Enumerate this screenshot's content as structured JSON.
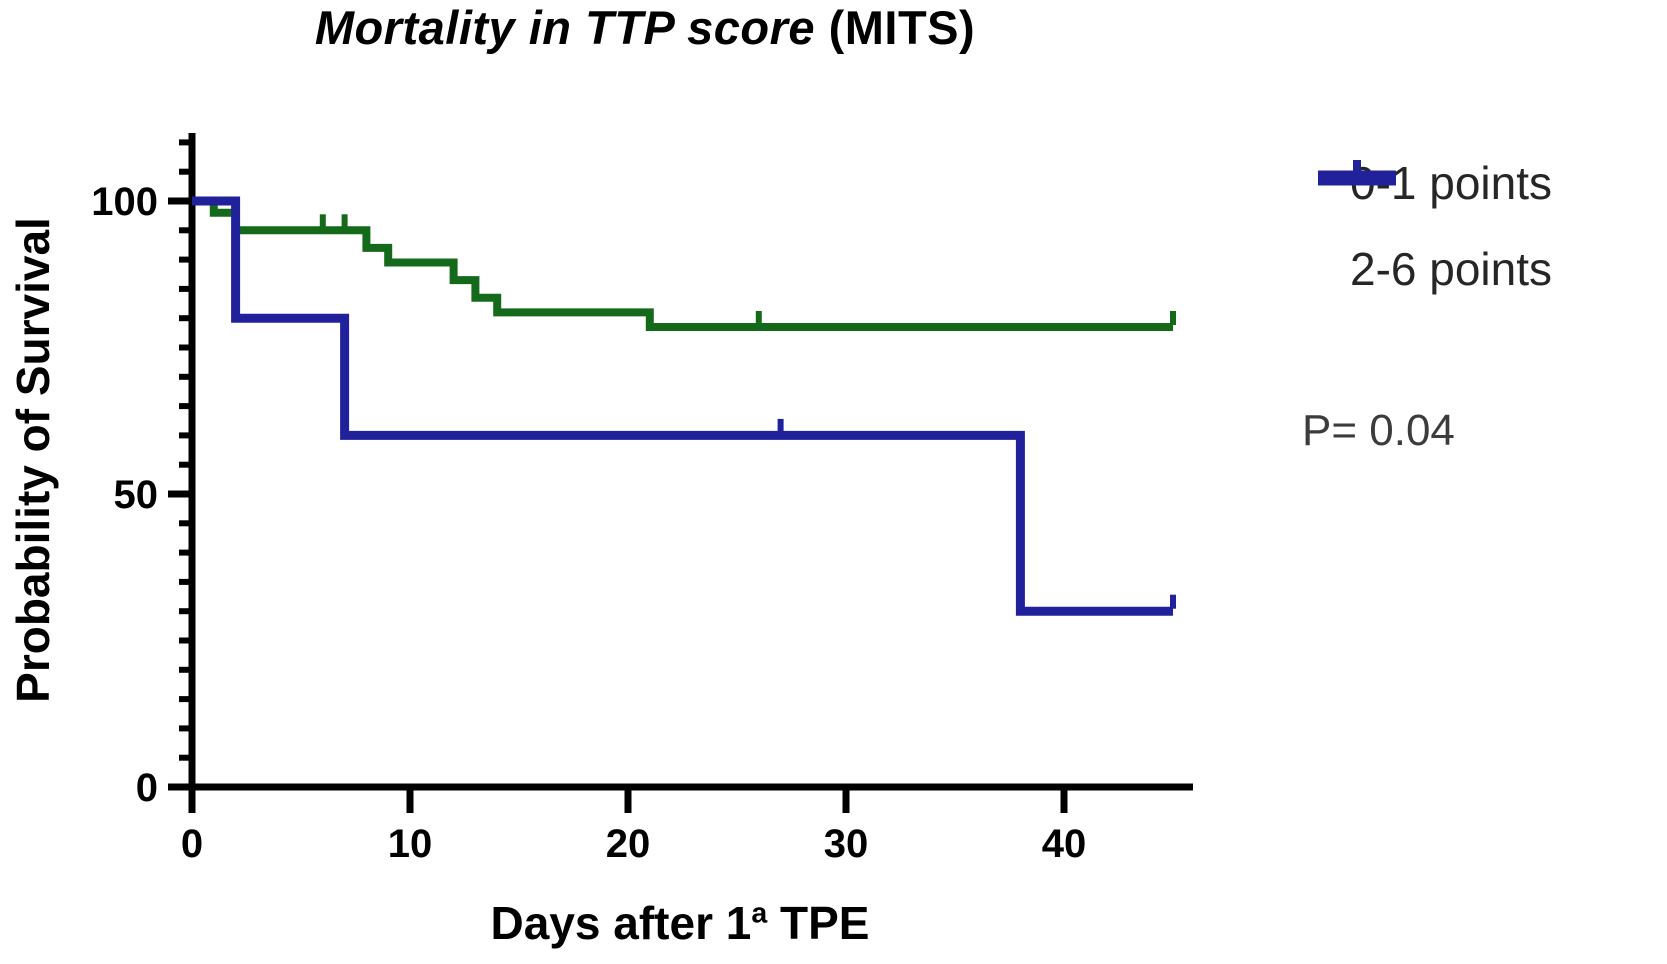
{
  "title": {
    "italic": "Mortality in TTP score",
    "normal": " (MITS)"
  },
  "axes": {
    "y": {
      "label": "Probability of Survival"
    },
    "x": {
      "label_prefix": "Days after 1",
      "label_sup": "a",
      "label_suffix": " TPE"
    }
  },
  "legend": [
    {
      "label": "0-1 points",
      "color": "#15691a"
    },
    {
      "label": "2-6 points",
      "color": "#21219c"
    }
  ],
  "annotation": {
    "p_value": "P= 0.04"
  },
  "chart_data": {
    "type": "line",
    "subtype": "kaplan-meier-step-survival",
    "title": "Mortality in TTP score (MITS)",
    "xlabel": "Days after 1ª TPE",
    "ylabel": "Probability of Survival",
    "xlim": [
      0,
      46
    ],
    "ylim": [
      0,
      111
    ],
    "xticks": [
      0,
      10,
      20,
      30,
      40
    ],
    "yticks": [
      0,
      50,
      100
    ],
    "yminor": {
      "step": 5,
      "max": 110
    },
    "grid": false,
    "legend_position": "right",
    "series": [
      {
        "name": "0-1 points",
        "color": "#15691a",
        "stroke_width": 8,
        "steps": [
          [
            0,
            100
          ],
          [
            1,
            98
          ],
          [
            2,
            95
          ],
          [
            8,
            92
          ],
          [
            9,
            89.5
          ],
          [
            12,
            86.5
          ],
          [
            13,
            83.5
          ],
          [
            14,
            81
          ],
          [
            21,
            78.5
          ]
        ],
        "end_x": 45,
        "censor_marks": [
          [
            6,
            95
          ],
          [
            7,
            95
          ],
          [
            26,
            78.5
          ],
          [
            45,
            78.5
          ]
        ]
      },
      {
        "name": "2-6 points",
        "color": "#21219c",
        "stroke_width": 9,
        "steps": [
          [
            0,
            100
          ],
          [
            2,
            80
          ],
          [
            7,
            60
          ],
          [
            38,
            30
          ]
        ],
        "end_x": 45,
        "censor_marks": [
          [
            27,
            60
          ],
          [
            45,
            30
          ]
        ]
      }
    ],
    "annotations": [
      {
        "text": "P= 0.04",
        "position": "right-middle"
      }
    ]
  }
}
